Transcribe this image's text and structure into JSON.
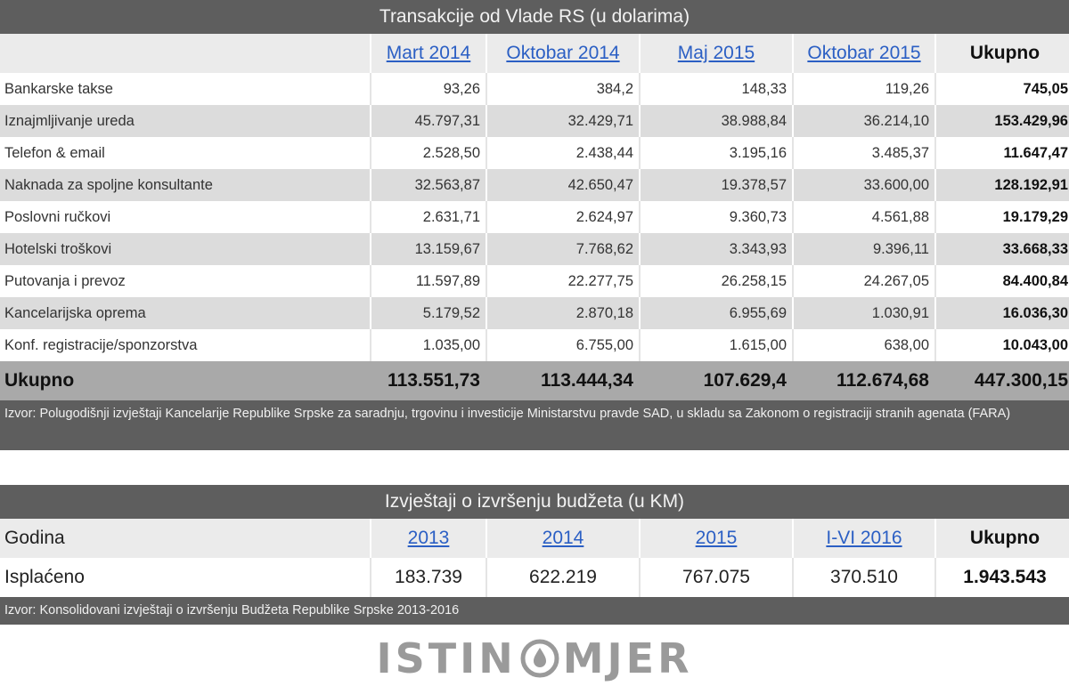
{
  "table1": {
    "title": "Transakcije od Vlade RS (u dolarima)",
    "columns": [
      "",
      "Mart 2014",
      "Oktobar 2014",
      "Maj 2015",
      "Oktobar 2015",
      "Ukupno"
    ],
    "rows": [
      {
        "label": "Bankarske takse",
        "values": [
          "93,26",
          "384,2",
          "148,33",
          "119,26",
          "745,05"
        ]
      },
      {
        "label": "Iznajmljivanje ureda",
        "values": [
          "45.797,31",
          "32.429,71",
          "38.988,84",
          "36.214,10",
          "153.429,96"
        ]
      },
      {
        "label": "Telefon & email",
        "values": [
          "2.528,50",
          "2.438,44",
          "3.195,16",
          "3.485,37",
          "11.647,47"
        ]
      },
      {
        "label": "Naknada za spoljne konsultante",
        "values": [
          "32.563,87",
          "42.650,47",
          "19.378,57",
          "33.600,00",
          "128.192,91"
        ]
      },
      {
        "label": "Poslovni ručkovi",
        "values": [
          "2.631,71",
          "2.624,97",
          "9.360,73",
          "4.561,88",
          "19.179,29"
        ]
      },
      {
        "label": "Hotelski troškovi",
        "values": [
          "13.159,67",
          "7.768,62",
          "3.343,93",
          "9.396,11",
          "33.668,33"
        ]
      },
      {
        "label": "Putovanja i prevoz",
        "values": [
          "11.597,89",
          "22.277,75",
          "26.258,15",
          "24.267,05",
          "84.400,84"
        ]
      },
      {
        "label": "Kancelarijska oprema",
        "values": [
          "5.179,52",
          "2.870,18",
          "6.955,69",
          "1.030,91",
          "16.036,30"
        ]
      },
      {
        "label": "Konf. registracije/sponzorstva",
        "values": [
          "1.035,00",
          "6.755,00",
          "1.615,00",
          "638,00",
          "10.043,00"
        ]
      }
    ],
    "total": {
      "label": "Ukupno",
      "values": [
        "113.551,73",
        "113.444,34",
        "107.629,4",
        "112.674,68",
        "447.300,15"
      ]
    },
    "source": "Izvor: Polugodišnji izvještaji Kancelarije Republike Srpske za saradnju, trgovinu i investicije Ministarstvu pravde SAD, u skladu sa Zakonom o registraciji stranih agenata (FARA)"
  },
  "table2": {
    "title": "Izvještaji o izvršenju budžeta (u KM)",
    "header_label": "Godina",
    "columns": [
      "2013",
      "2014",
      "2015",
      "I-VI 2016"
    ],
    "total_header": "Ukupno",
    "row": {
      "label": "Isplaćeno",
      "values": [
        "183.739",
        "622.219",
        "767.075",
        "370.510",
        "1.943.543"
      ]
    },
    "source": "Izvor: Konsolidovani izvještaji o izvršenju Budžeta Republike Srpske 2013-2016"
  },
  "logo": {
    "left": "ISTIN",
    "right": "MJER"
  },
  "colors": {
    "dark_bar": "#5e5e5e",
    "header_bg": "#ebebeb",
    "stripe": "#dcdcdc",
    "total_bg": "#a9a9a9",
    "link": "#2b5fc4",
    "logo": "#9a9a9a"
  }
}
